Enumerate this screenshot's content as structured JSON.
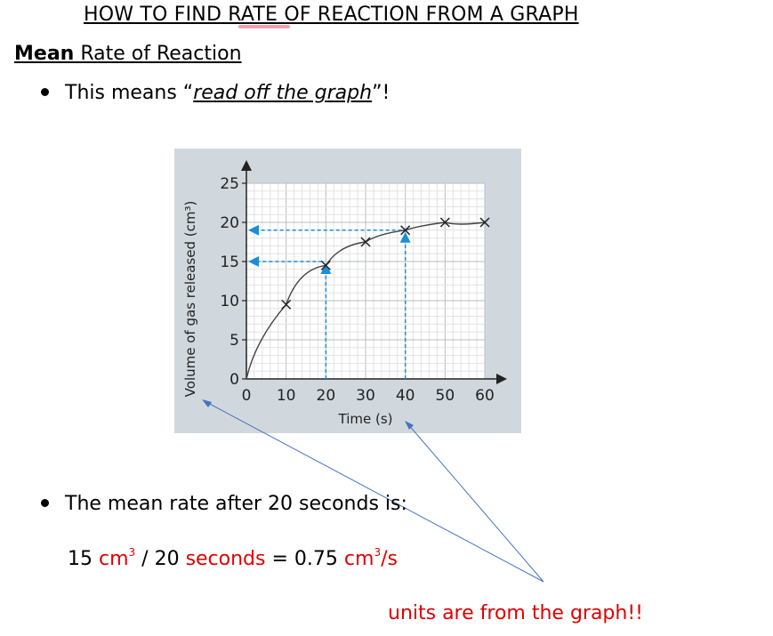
{
  "title": "HOW TO FIND RATE OF REACTION FROM A GRAPH",
  "heading": {
    "bold": "Mean",
    "rest": " Rate of Reaction"
  },
  "bullet1": {
    "prefix": "This means “",
    "emph": "read off the graph",
    "suffix": "”!"
  },
  "bullet2": "The mean rate after 20 seconds is:",
  "calc": {
    "n1": "15",
    "u1": "cm",
    "sup1": "3",
    "op": " / 20 ",
    "u2": "seconds",
    "eq": " = 0.75 ",
    "u3": "cm",
    "sup3": "3",
    "u3b": "/s"
  },
  "note": "units are from the graph!!",
  "colors": {
    "accent_red": "#e00000",
    "guide_blue": "#1a8fd6",
    "arrow_blue": "#4472c4"
  },
  "chart_data": {
    "type": "line",
    "xlabel": "Time (s)",
    "ylabel": "Volume of gas released (cm³)",
    "xlim": [
      0,
      60
    ],
    "ylim": [
      0,
      25
    ],
    "x_ticks": [
      "0",
      "10",
      "20",
      "30",
      "40",
      "50",
      "60"
    ],
    "y_ticks": [
      "0",
      "5",
      "10",
      "15",
      "20",
      "25"
    ],
    "grid": true,
    "points": [
      {
        "x": 10,
        "y": 9.5
      },
      {
        "x": 20,
        "y": 14.5
      },
      {
        "x": 30,
        "y": 17.5
      },
      {
        "x": 40,
        "y": 19
      },
      {
        "x": 50,
        "y": 20
      },
      {
        "x": 60,
        "y": 20
      }
    ],
    "curve_start": {
      "x": 0,
      "y": 0
    },
    "guides": [
      {
        "x": 20,
        "y": 15
      },
      {
        "x": 40,
        "y": 19
      }
    ]
  }
}
